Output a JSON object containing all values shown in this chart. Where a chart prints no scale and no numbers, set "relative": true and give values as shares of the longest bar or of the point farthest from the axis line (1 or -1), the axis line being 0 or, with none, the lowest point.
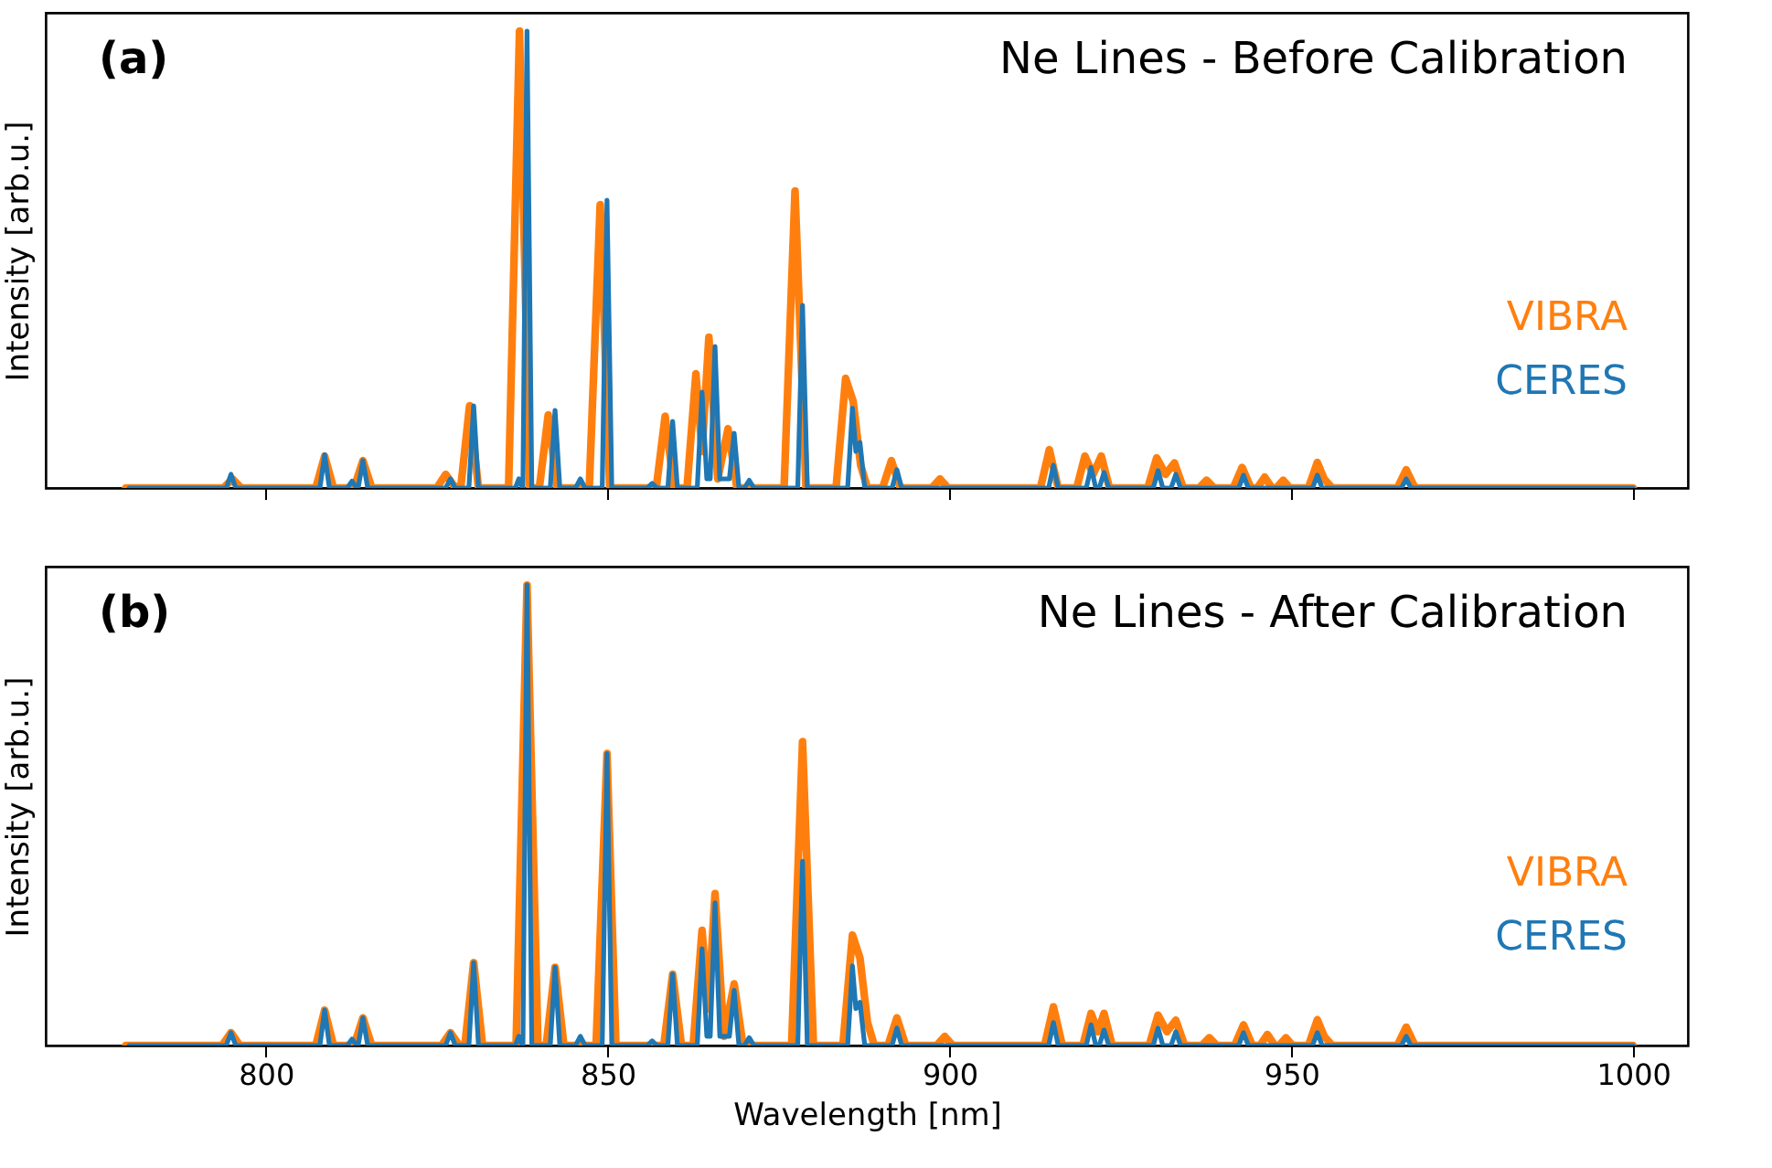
{
  "chart_data": [
    {
      "type": "line",
      "title": "Ne Lines - Before Calibration",
      "annotations": [
        "(a)"
      ],
      "ylabel": "Intensity [arb.u.]",
      "relative": true,
      "xlim": [
        767.8,
        1008
      ],
      "xticks": [
        800,
        850,
        900,
        950,
        1000
      ],
      "tick_labels": false,
      "grid": false,
      "line_style": "solid",
      "marker": "none",
      "series": [
        {
          "name": "VIBRA",
          "color": "#ff7f0e",
          "x": [
            779.5,
            793.8,
            795.1,
            796.4,
            807.3,
            808.6,
            809.9,
            812.9,
            814.2,
            815.5,
            825,
            826.3,
            827.5,
            828.5,
            829.8,
            831.1,
            835.5,
            837.1,
            838.6,
            840,
            841.3,
            842.6,
            847.3,
            848.9,
            850.3,
            857.1,
            858.4,
            859.7,
            861.6,
            862.9,
            863.8,
            864.8,
            866.1,
            867.6,
            868.9,
            875.8,
            877.4,
            879,
            883.4,
            884.8,
            885.9,
            887,
            888,
            890.2,
            891.5,
            892.8,
            897.4,
            898.6,
            899.8,
            913.3,
            914.6,
            915.9,
            918.6,
            919.8,
            921,
            922.2,
            923.4,
            929,
            930.3,
            931.6,
            932.9,
            934.2,
            936.5,
            937.6,
            938.7,
            941.5,
            942.8,
            944.1,
            945,
            946.1,
            947.2,
            947.8,
            948.8,
            949.8,
            952.5,
            953.8,
            954.8,
            956,
            965.5,
            966.8,
            968.1,
            1000
          ],
          "values": [
            0,
            0,
            0.02,
            0,
            0,
            0.07,
            0,
            0,
            0.06,
            0,
            0,
            0.03,
            0.005,
            0,
            0.18,
            0,
            0,
            1.0,
            0,
            0,
            0.16,
            0,
            0,
            0.62,
            0,
            0,
            0.157,
            0,
            0,
            0.25,
            0.08,
            0.33,
            0.02,
            0.13,
            0,
            0,
            0.65,
            0,
            0,
            0.24,
            0.19,
            0.05,
            0,
            0,
            0.06,
            0,
            0,
            0.02,
            0,
            0,
            0.084,
            0,
            0,
            0.07,
            0.03,
            0.07,
            0,
            0,
            0.066,
            0.03,
            0.055,
            0,
            0,
            0.017,
            0,
            0,
            0.045,
            0,
            0,
            0.024,
            0,
            0,
            0.017,
            0,
            0,
            0.056,
            0.02,
            0,
            0,
            0.04,
            0,
            0
          ]
        },
        {
          "name": "CERES",
          "color": "#1f77b4",
          "x": [
            780,
            794.2,
            794.9,
            795.6,
            807.9,
            808.6,
            809.3,
            811.9,
            812.6,
            813.3,
            813.5,
            814.2,
            814.9,
            826.3,
            827,
            827.7,
            829.7,
            830.4,
            831.1,
            836.5,
            837,
            837.5,
            837.6,
            838.2,
            838.9,
            841.6,
            842.3,
            843,
            845.3,
            846,
            846.7,
            849.2,
            849.9,
            850.6,
            855.8,
            856.5,
            857.2,
            858.8,
            859.5,
            860.2,
            863.1,
            863.8,
            864.5,
            865,
            865.7,
            866.4,
            867.8,
            868.5,
            869.2,
            870,
            870.7,
            871.4,
            877.8,
            878.5,
            879.2,
            885.1,
            885.8,
            886.3,
            886.9,
            887.6,
            891.6,
            892.3,
            893,
            914.5,
            915.2,
            915.9,
            920,
            920.7,
            921.4,
            921.9,
            922.6,
            923.3,
            929.8,
            930.5,
            931.2,
            932.4,
            933.1,
            933.8,
            942.3,
            943,
            943.7,
            953.1,
            953.8,
            954.5,
            966.1,
            966.8,
            967.5,
            1000
          ],
          "values": [
            0,
            0,
            0.03,
            0,
            0,
            0.073,
            0,
            0,
            0.015,
            0,
            0,
            0.06,
            0,
            0,
            0.02,
            0,
            0,
            0.18,
            0,
            0,
            0.02,
            0,
            0,
            1.0,
            0,
            0,
            0.17,
            0,
            0,
            0.02,
            0,
            0,
            0.63,
            0,
            0,
            0.01,
            0,
            0,
            0.146,
            0,
            0,
            0.21,
            0.02,
            0.02,
            0.31,
            0.02,
            0.02,
            0.12,
            0,
            0,
            0.017,
            0,
            0,
            0.4,
            0,
            0,
            0.175,
            0.08,
            0.1,
            0,
            0,
            0.04,
            0,
            0,
            0.05,
            0,
            0,
            0.045,
            0,
            0,
            0.034,
            0,
            0,
            0.038,
            0,
            0,
            0.03,
            0,
            0,
            0.028,
            0,
            0,
            0.028,
            0,
            0,
            0.02,
            0,
            0
          ]
        }
      ]
    },
    {
      "type": "line",
      "title": "Ne Lines - After Calibration",
      "annotations": [
        "(b)"
      ],
      "xlabel": "Wavelength [nm]",
      "ylabel": "Intensity [arb.u.]",
      "relative": true,
      "xlim": [
        767.8,
        1008
      ],
      "xticks": [
        800,
        850,
        900,
        950,
        1000
      ],
      "tick_labels": "x",
      "grid": false,
      "line_style": "solid",
      "marker": "none",
      "series": [
        {
          "name": "VIBRA",
          "color": "#ff7f0e",
          "x": [
            779.5,
            793.6,
            794.9,
            796.2,
            807.3,
            808.6,
            809.9,
            812.9,
            814.2,
            815.5,
            825.7,
            827,
            828.3,
            829.1,
            830.4,
            831.7,
            836.6,
            838.2,
            839.8,
            841,
            842.3,
            843.6,
            848.3,
            849.9,
            851.2,
            858.2,
            859.5,
            860.8,
            862.5,
            863.8,
            864.7,
            865.7,
            867,
            868.5,
            869.8,
            876.9,
            878.5,
            880.1,
            884.4,
            885.8,
            886.9,
            888,
            889,
            891,
            892.3,
            893.6,
            898.1,
            899.3,
            900.5,
            913.9,
            915.2,
            916.5,
            919.5,
            920.7,
            921.7,
            922.6,
            923.8,
            929.2,
            930.5,
            931.8,
            933.1,
            934.4,
            936.9,
            938,
            939.1,
            941.7,
            943,
            944.3,
            945.4,
            946.5,
            947.6,
            948.2,
            949.2,
            950.2,
            952.5,
            953.8,
            954.8,
            956,
            965.5,
            966.8,
            968.1,
            1000
          ],
          "values": [
            0,
            0,
            0.028,
            0,
            0,
            0.077,
            0,
            0,
            0.06,
            0,
            0,
            0.028,
            0,
            0,
            0.18,
            0,
            0,
            1.0,
            0,
            0,
            0.17,
            0,
            0,
            0.634,
            0,
            0,
            0.155,
            0,
            0,
            0.25,
            0.08,
            0.33,
            0.02,
            0.134,
            0,
            0,
            0.66,
            0,
            0,
            0.24,
            0.19,
            0.05,
            0,
            0,
            0.06,
            0,
            0,
            0.02,
            0,
            0,
            0.084,
            0,
            0,
            0.07,
            0.03,
            0.07,
            0,
            0,
            0.066,
            0.03,
            0.055,
            0,
            0,
            0.017,
            0,
            0,
            0.045,
            0,
            0,
            0.024,
            0,
            0,
            0.017,
            0,
            0,
            0.056,
            0.02,
            0,
            0,
            0.04,
            0,
            0
          ]
        },
        {
          "name": "CERES",
          "color": "#1f77b4",
          "x": [
            780,
            794.2,
            794.9,
            795.6,
            807.9,
            808.6,
            809.3,
            811.9,
            812.6,
            813.3,
            813.5,
            814.2,
            814.9,
            826.3,
            827,
            827.7,
            829.7,
            830.4,
            831.1,
            836.5,
            837,
            837.5,
            837.6,
            838.2,
            838.9,
            841.6,
            842.3,
            843,
            845.3,
            846,
            846.7,
            849.2,
            849.9,
            850.6,
            855.8,
            856.5,
            857.2,
            858.8,
            859.5,
            860.2,
            863.1,
            863.8,
            864.5,
            865,
            865.7,
            866.4,
            867.8,
            868.5,
            869.2,
            870,
            870.7,
            871.4,
            877.8,
            878.5,
            879.2,
            885.1,
            885.8,
            886.3,
            886.9,
            887.6,
            891.6,
            892.3,
            893,
            914.5,
            915.2,
            915.9,
            920,
            920.7,
            921.4,
            921.9,
            922.6,
            923.3,
            929.8,
            930.5,
            931.2,
            932.4,
            933.1,
            933.8,
            942.3,
            943,
            943.7,
            953.1,
            953.8,
            954.5,
            966.1,
            966.8,
            967.5,
            1000
          ],
          "values": [
            0,
            0,
            0.028,
            0,
            0,
            0.077,
            0,
            0,
            0.014,
            0,
            0,
            0.06,
            0,
            0,
            0.028,
            0,
            0,
            0.18,
            0,
            0,
            0.02,
            0,
            0,
            1.0,
            0,
            0,
            0.17,
            0,
            0,
            0.02,
            0,
            0,
            0.634,
            0,
            0,
            0.01,
            0,
            0,
            0.155,
            0,
            0,
            0.21,
            0.02,
            0.02,
            0.31,
            0.02,
            0.02,
            0.12,
            0,
            0,
            0.017,
            0,
            0,
            0.4,
            0,
            0,
            0.173,
            0.08,
            0.094,
            0,
            0,
            0.038,
            0,
            0,
            0.05,
            0,
            0,
            0.045,
            0,
            0,
            0.034,
            0,
            0,
            0.038,
            0,
            0,
            0.03,
            0,
            0,
            0.028,
            0,
            0,
            0.028,
            0,
            0,
            0.02,
            0,
            0
          ]
        }
      ]
    }
  ]
}
